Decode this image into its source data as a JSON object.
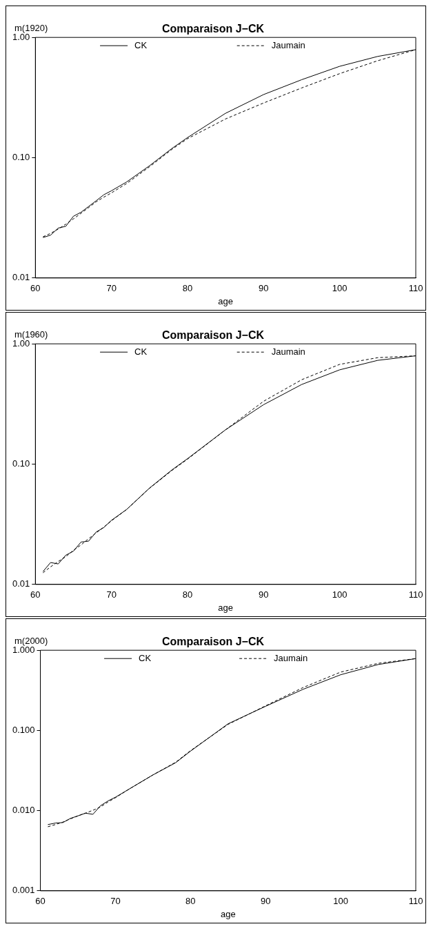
{
  "chart_data": [
    {
      "type": "line",
      "title": "Comparaison J−CK",
      "xlabel": "age",
      "ylabel": "m(1920)",
      "log": "y",
      "legend": "top",
      "xlim": [
        60,
        110
      ],
      "xticks": [
        60,
        70,
        80,
        90,
        100,
        110
      ],
      "ylim": [
        0.01,
        1
      ],
      "yticks": [
        {
          "value": 0.01,
          "label": "0.01"
        },
        {
          "value": 0.1,
          "label": "0.10"
        },
        {
          "value": 1,
          "label": "1.00"
        }
      ],
      "x": [
        61,
        62,
        63,
        64,
        65,
        66,
        67,
        68,
        69,
        70,
        72,
        75,
        78,
        80,
        85,
        90,
        95,
        100,
        105,
        110
      ],
      "series": [
        {
          "name": "CK",
          "color": "#000000",
          "line_style": "solid",
          "values": [
            0.0217,
            0.0227,
            0.026,
            0.0269,
            0.0326,
            0.0352,
            0.0393,
            0.0439,
            0.0492,
            0.0531,
            0.0629,
            0.0857,
            0.12,
            0.147,
            0.234,
            0.335,
            0.445,
            0.575,
            0.695,
            0.791
          ]
        },
        {
          "name": "Jaumain",
          "color": "#000000",
          "line_style": "dashed",
          "values": [
            0.022,
            0.0235,
            0.0255,
            0.028,
            0.031,
            0.0345,
            0.0385,
            0.043,
            0.047,
            0.051,
            0.061,
            0.084,
            0.118,
            0.144,
            0.21,
            0.285,
            0.38,
            0.5,
            0.64,
            0.791
          ]
        }
      ]
    },
    {
      "type": "line",
      "title": "Comparaison J−CK",
      "xlabel": "age",
      "ylabel": "m(1960)",
      "log": "y",
      "legend": "top",
      "xlim": [
        60,
        110
      ],
      "xticks": [
        60,
        70,
        80,
        90,
        100,
        110
      ],
      "ylim": [
        0.01,
        1
      ],
      "yticks": [
        {
          "value": 0.01,
          "label": "0.01"
        },
        {
          "value": 0.1,
          "label": "0.10"
        },
        {
          "value": 1,
          "label": "1.00"
        }
      ],
      "x": [
        61,
        62,
        63,
        64,
        65,
        66,
        67,
        68,
        69,
        70,
        72,
        75,
        78,
        80,
        85,
        90,
        95,
        100,
        105,
        110
      ],
      "series": [
        {
          "name": "CK",
          "color": "#000000",
          "line_style": "solid",
          "values": [
            0.0128,
            0.0152,
            0.0148,
            0.0175,
            0.0189,
            0.0225,
            0.0229,
            0.0273,
            0.0297,
            0.0341,
            0.042,
            0.0632,
            0.09,
            0.111,
            0.193,
            0.312,
            0.459,
            0.608,
            0.729,
            0.795
          ]
        },
        {
          "name": "Jaumain",
          "color": "#000000",
          "line_style": "dashed",
          "values": [
            0.0125,
            0.014,
            0.0155,
            0.017,
            0.0192,
            0.0213,
            0.024,
            0.0268,
            0.03,
            0.0338,
            0.042,
            0.063,
            0.089,
            0.11,
            0.193,
            0.333,
            0.503,
            0.675,
            0.767,
            0.795
          ]
        }
      ]
    },
    {
      "type": "line",
      "title": "Comparaison J−CK",
      "xlabel": "age",
      "ylabel": "m(2000)",
      "log": "y",
      "legend": "top",
      "xlim": [
        60,
        110
      ],
      "xticks": [
        60,
        70,
        80,
        90,
        100,
        110
      ],
      "ylim": [
        0.001,
        1
      ],
      "yticks": [
        {
          "value": 0.001,
          "label": "0.001"
        },
        {
          "value": 0.01,
          "label": "0.010"
        },
        {
          "value": 0.1,
          "label": "0.100"
        },
        {
          "value": 1,
          "label": "1.000"
        }
      ],
      "x": [
        61,
        62,
        63,
        64,
        65,
        66,
        67,
        68,
        69,
        70,
        72,
        75,
        78,
        80,
        85,
        90,
        95,
        100,
        105,
        110
      ],
      "series": [
        {
          "name": "CK",
          "color": "#000000",
          "line_style": "solid",
          "values": [
            0.0067,
            0.007,
            0.0071,
            0.008,
            0.0086,
            0.0093,
            0.009,
            0.0115,
            0.0132,
            0.0147,
            0.019,
            0.0279,
            0.0395,
            0.0552,
            0.121,
            0.2,
            0.326,
            0.495,
            0.664,
            0.787
          ]
        },
        {
          "name": "Jaumain",
          "color": "#000000",
          "line_style": "dashed",
          "values": [
            0.0063,
            0.0067,
            0.0072,
            0.0079,
            0.0086,
            0.0093,
            0.0101,
            0.0111,
            0.0128,
            0.0145,
            0.019,
            0.0279,
            0.04,
            0.056,
            0.119,
            0.203,
            0.343,
            0.534,
            0.687,
            0.787
          ]
        }
      ]
    }
  ]
}
